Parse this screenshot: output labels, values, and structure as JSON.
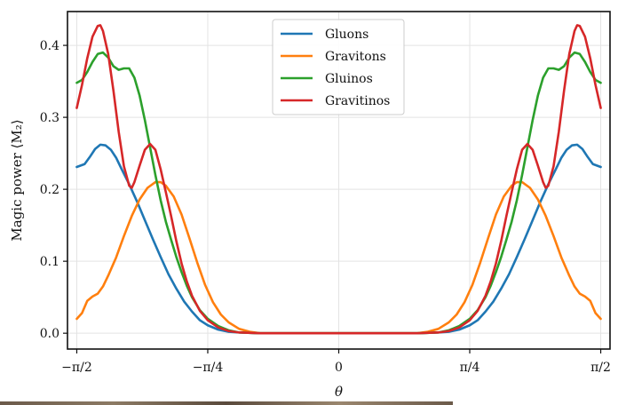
{
  "chart_data": {
    "type": "line",
    "title": "",
    "xlabel": "θ",
    "ylabel": "Magic power ⟨M₂⟩",
    "xlim": [
      -1.6265,
      1.6265
    ],
    "ylim": [
      -0.022,
      0.447
    ],
    "xticks": [
      {
        "value": -1.5708,
        "label": "−π/2"
      },
      {
        "value": -0.7854,
        "label": "−π/4"
      },
      {
        "value": 0,
        "label": "0"
      },
      {
        "value": 0.7854,
        "label": "π/4"
      },
      {
        "value": 1.5708,
        "label": "π/2"
      }
    ],
    "yticks": [
      {
        "value": 0.0,
        "label": "0.0"
      },
      {
        "value": 0.1,
        "label": "0.1"
      },
      {
        "value": 0.2,
        "label": "0.2"
      },
      {
        "value": 0.3,
        "label": "0.3"
      },
      {
        "value": 0.4,
        "label": "0.4"
      }
    ],
    "grid": true,
    "legend_position": "top-center",
    "series": [
      {
        "name": "Gluons",
        "color": "#1f77b4",
        "points": [
          [
            -1.5708,
            0.231
          ],
          [
            -1.5237,
            0.235
          ],
          [
            -1.4923,
            0.245
          ],
          [
            -1.4609,
            0.256
          ],
          [
            -1.4294,
            0.262
          ],
          [
            -1.398,
            0.261
          ],
          [
            -1.3666,
            0.255
          ],
          [
            -1.3352,
            0.244
          ],
          [
            -1.3038,
            0.229
          ],
          [
            -1.2566,
            0.207
          ],
          [
            -1.2095,
            0.183
          ],
          [
            -1.1624,
            0.157
          ],
          [
            -1.1153,
            0.131
          ],
          [
            -1.0681,
            0.106
          ],
          [
            -1.021,
            0.082
          ],
          [
            -0.9739,
            0.062
          ],
          [
            -0.9268,
            0.044
          ],
          [
            -0.8796,
            0.03
          ],
          [
            -0.8325,
            0.018
          ],
          [
            -0.7854,
            0.011
          ],
          [
            -0.7226,
            0.005
          ],
          [
            -0.6597,
            0.002
          ],
          [
            -0.5969,
            0.001
          ],
          [
            -0.4712,
            0.0
          ],
          [
            0,
            0.0
          ],
          [
            0.4712,
            0.0
          ],
          [
            0.5969,
            0.001
          ],
          [
            0.6597,
            0.002
          ],
          [
            0.7226,
            0.005
          ],
          [
            0.7854,
            0.011
          ],
          [
            0.8325,
            0.018
          ],
          [
            0.8796,
            0.03
          ],
          [
            0.9268,
            0.044
          ],
          [
            0.9739,
            0.062
          ],
          [
            1.021,
            0.082
          ],
          [
            1.0681,
            0.106
          ],
          [
            1.1153,
            0.131
          ],
          [
            1.1624,
            0.157
          ],
          [
            1.2095,
            0.183
          ],
          [
            1.2566,
            0.207
          ],
          [
            1.3038,
            0.229
          ],
          [
            1.3352,
            0.244
          ],
          [
            1.3666,
            0.255
          ],
          [
            1.398,
            0.261
          ],
          [
            1.4294,
            0.262
          ],
          [
            1.4609,
            0.256
          ],
          [
            1.4923,
            0.245
          ],
          [
            1.5237,
            0.235
          ],
          [
            1.5708,
            0.231
          ]
        ]
      },
      {
        "name": "Gravitons",
        "color": "#ff7f0e",
        "points": [
          [
            -1.5708,
            0.02
          ],
          [
            -1.5394,
            0.028
          ],
          [
            -1.508,
            0.045
          ],
          [
            -1.4766,
            0.051
          ],
          [
            -1.4451,
            0.055
          ],
          [
            -1.4137,
            0.065
          ],
          [
            -1.3823,
            0.08
          ],
          [
            -1.3352,
            0.105
          ],
          [
            -1.2881,
            0.135
          ],
          [
            -1.2409,
            0.163
          ],
          [
            -1.1938,
            0.186
          ],
          [
            -1.1467,
            0.202
          ],
          [
            -1.0996,
            0.21
          ],
          [
            -1.0681,
            0.21
          ],
          [
            -1.0367,
            0.205
          ],
          [
            -0.9896,
            0.19
          ],
          [
            -0.9425,
            0.165
          ],
          [
            -0.8954,
            0.132
          ],
          [
            -0.8482,
            0.098
          ],
          [
            -0.8011,
            0.067
          ],
          [
            -0.754,
            0.043
          ],
          [
            -0.7069,
            0.026
          ],
          [
            -0.6597,
            0.015
          ],
          [
            -0.5969,
            0.006
          ],
          [
            -0.5341,
            0.002
          ],
          [
            -0.4712,
            0.0
          ],
          [
            0,
            0.0
          ],
          [
            0.4712,
            0.0
          ],
          [
            0.5341,
            0.002
          ],
          [
            0.5969,
            0.006
          ],
          [
            0.6597,
            0.015
          ],
          [
            0.7069,
            0.026
          ],
          [
            0.754,
            0.043
          ],
          [
            0.8011,
            0.067
          ],
          [
            0.8482,
            0.098
          ],
          [
            0.8954,
            0.132
          ],
          [
            0.9425,
            0.165
          ],
          [
            0.9896,
            0.19
          ],
          [
            1.0367,
            0.205
          ],
          [
            1.0681,
            0.21
          ],
          [
            1.0996,
            0.21
          ],
          [
            1.1467,
            0.202
          ],
          [
            1.1938,
            0.186
          ],
          [
            1.2409,
            0.163
          ],
          [
            1.2881,
            0.135
          ],
          [
            1.3352,
            0.105
          ],
          [
            1.3823,
            0.08
          ],
          [
            1.4137,
            0.065
          ],
          [
            1.4451,
            0.055
          ],
          [
            1.4766,
            0.051
          ],
          [
            1.508,
            0.045
          ],
          [
            1.5394,
            0.028
          ],
          [
            1.5708,
            0.02
          ]
        ]
      },
      {
        "name": "Gluinos",
        "color": "#2ca02c",
        "points": [
          [
            -1.5708,
            0.348
          ],
          [
            -1.5394,
            0.352
          ],
          [
            -1.508,
            0.363
          ],
          [
            -1.4766,
            0.377
          ],
          [
            -1.4451,
            0.388
          ],
          [
            -1.4137,
            0.39
          ],
          [
            -1.3823,
            0.383
          ],
          [
            -1.3509,
            0.371
          ],
          [
            -1.3195,
            0.366
          ],
          [
            -1.2881,
            0.368
          ],
          [
            -1.2566,
            0.368
          ],
          [
            -1.2252,
            0.355
          ],
          [
            -1.1938,
            0.33
          ],
          [
            -1.1624,
            0.296
          ],
          [
            -1.131,
            0.258
          ],
          [
            -1.0996,
            0.22
          ],
          [
            -1.0681,
            0.185
          ],
          [
            -1.0367,
            0.155
          ],
          [
            -1.0053,
            0.13
          ],
          [
            -0.9739,
            0.106
          ],
          [
            -0.9425,
            0.085
          ],
          [
            -0.9111,
            0.066
          ],
          [
            -0.8796,
            0.05
          ],
          [
            -0.8325,
            0.032
          ],
          [
            -0.7854,
            0.02
          ],
          [
            -0.7226,
            0.01
          ],
          [
            -0.6597,
            0.004
          ],
          [
            -0.5969,
            0.001
          ],
          [
            -0.4712,
            0.0
          ],
          [
            0,
            0.0
          ],
          [
            0.4712,
            0.0
          ],
          [
            0.5969,
            0.001
          ],
          [
            0.6597,
            0.004
          ],
          [
            0.7226,
            0.01
          ],
          [
            0.7854,
            0.02
          ],
          [
            0.8325,
            0.032
          ],
          [
            0.8796,
            0.05
          ],
          [
            0.9111,
            0.066
          ],
          [
            0.9425,
            0.085
          ],
          [
            0.9739,
            0.106
          ],
          [
            1.0053,
            0.13
          ],
          [
            1.0367,
            0.155
          ],
          [
            1.0681,
            0.185
          ],
          [
            1.0996,
            0.22
          ],
          [
            1.131,
            0.258
          ],
          [
            1.1624,
            0.296
          ],
          [
            1.1938,
            0.33
          ],
          [
            1.2252,
            0.355
          ],
          [
            1.2566,
            0.368
          ],
          [
            1.2881,
            0.368
          ],
          [
            1.3195,
            0.366
          ],
          [
            1.3509,
            0.371
          ],
          [
            1.3823,
            0.383
          ],
          [
            1.4137,
            0.39
          ],
          [
            1.4451,
            0.388
          ],
          [
            1.4766,
            0.377
          ],
          [
            1.508,
            0.363
          ],
          [
            1.5394,
            0.352
          ],
          [
            1.5708,
            0.348
          ]
        ]
      },
      {
        "name": "Gravitinos",
        "color": "#d62728",
        "points": [
          [
            -1.5708,
            0.313
          ],
          [
            -1.5394,
            0.345
          ],
          [
            -1.508,
            0.382
          ],
          [
            -1.4766,
            0.412
          ],
          [
            -1.4451,
            0.427
          ],
          [
            -1.4295,
            0.428
          ],
          [
            -1.4137,
            0.42
          ],
          [
            -1.3823,
            0.388
          ],
          [
            -1.3509,
            0.337
          ],
          [
            -1.3195,
            0.28
          ],
          [
            -1.2881,
            0.232
          ],
          [
            -1.2566,
            0.205
          ],
          [
            -1.2409,
            0.202
          ],
          [
            -1.2252,
            0.21
          ],
          [
            -1.1938,
            0.233
          ],
          [
            -1.1624,
            0.255
          ],
          [
            -1.131,
            0.263
          ],
          [
            -1.0996,
            0.255
          ],
          [
            -1.0681,
            0.228
          ],
          [
            -1.0367,
            0.196
          ],
          [
            -1.0053,
            0.163
          ],
          [
            -0.9739,
            0.128
          ],
          [
            -0.9425,
            0.097
          ],
          [
            -0.9111,
            0.072
          ],
          [
            -0.8796,
            0.052
          ],
          [
            -0.8325,
            0.031
          ],
          [
            -0.7854,
            0.018
          ],
          [
            -0.7226,
            0.008
          ],
          [
            -0.6597,
            0.003
          ],
          [
            -0.5969,
            0.001
          ],
          [
            -0.4712,
            0.0
          ],
          [
            0,
            0.0
          ],
          [
            0.4712,
            0.0
          ],
          [
            0.5969,
            0.001
          ],
          [
            0.6597,
            0.003
          ],
          [
            0.7226,
            0.008
          ],
          [
            0.7854,
            0.018
          ],
          [
            0.8325,
            0.031
          ],
          [
            0.8796,
            0.052
          ],
          [
            0.9111,
            0.072
          ],
          [
            0.9425,
            0.097
          ],
          [
            0.9739,
            0.128
          ],
          [
            1.0053,
            0.163
          ],
          [
            1.0367,
            0.196
          ],
          [
            1.0681,
            0.228
          ],
          [
            1.0996,
            0.255
          ],
          [
            1.131,
            0.263
          ],
          [
            1.1624,
            0.255
          ],
          [
            1.1938,
            0.233
          ],
          [
            1.2252,
            0.21
          ],
          [
            1.2409,
            0.202
          ],
          [
            1.2566,
            0.205
          ],
          [
            1.2881,
            0.232
          ],
          [
            1.3195,
            0.28
          ],
          [
            1.3509,
            0.337
          ],
          [
            1.3823,
            0.388
          ],
          [
            1.4137,
            0.42
          ],
          [
            1.4295,
            0.428
          ],
          [
            1.4451,
            0.427
          ],
          [
            1.4766,
            0.412
          ],
          [
            1.508,
            0.382
          ],
          [
            1.5394,
            0.345
          ],
          [
            1.5708,
            0.313
          ]
        ]
      }
    ]
  }
}
